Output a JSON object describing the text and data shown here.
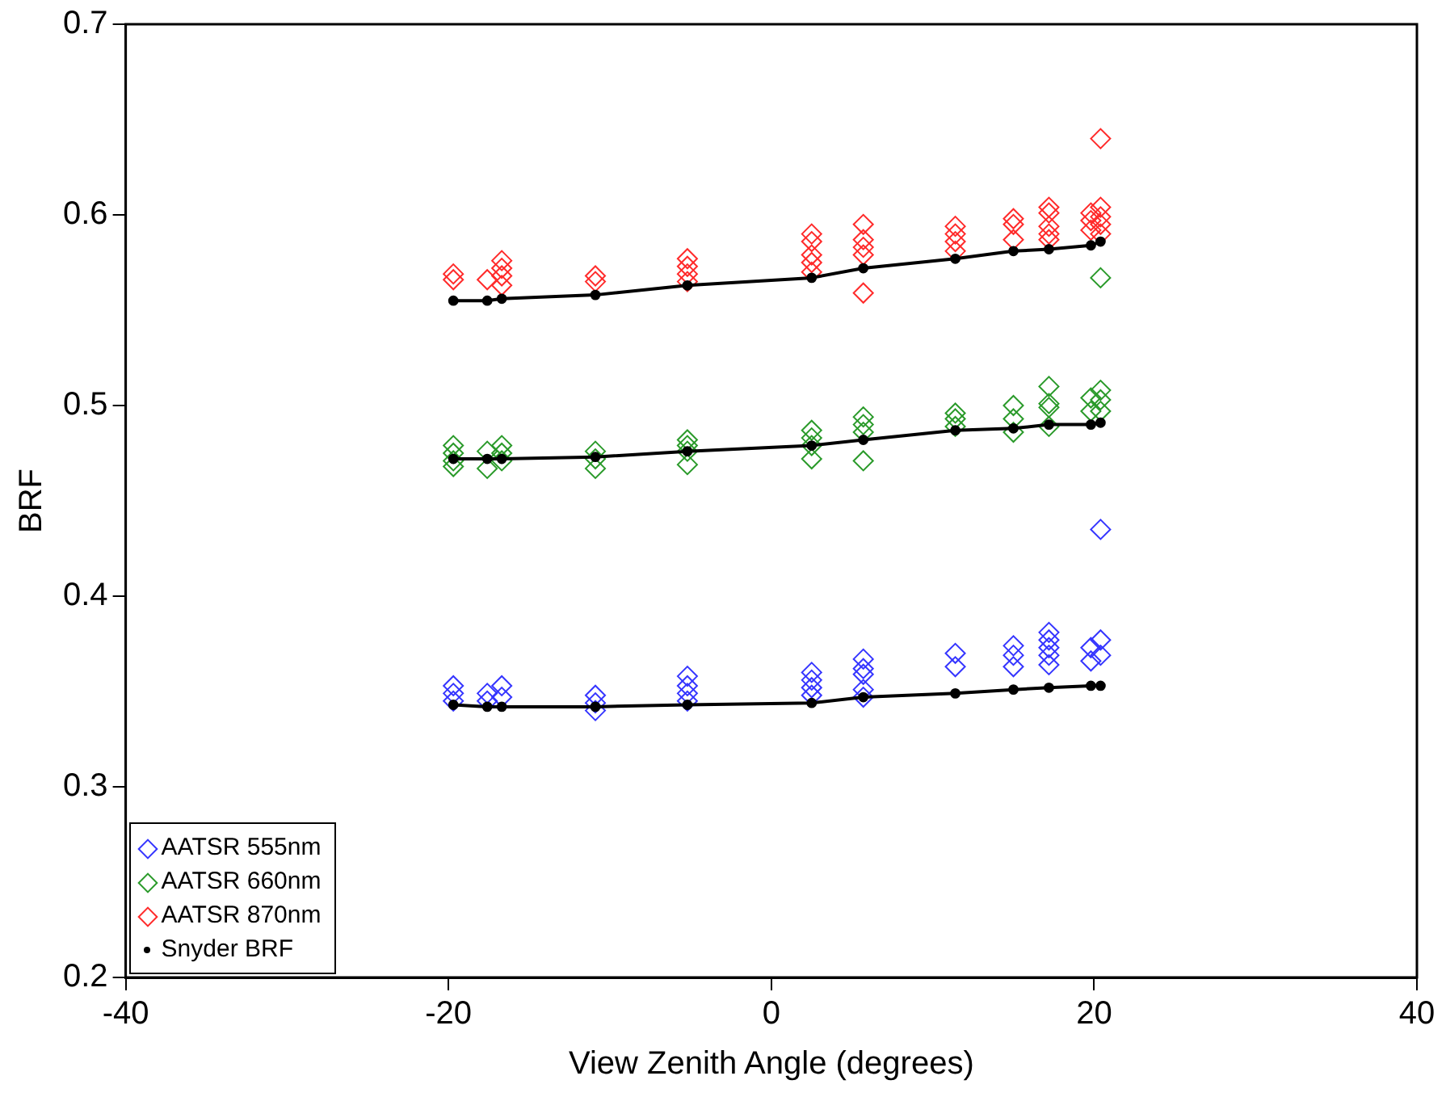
{
  "chart_data": {
    "type": "scatter",
    "xlabel": "View Zenith Angle (degrees)",
    "ylabel": "BRF",
    "xlim": [
      -40,
      40
    ],
    "xticks": [
      -40,
      -20,
      0,
      20,
      40
    ],
    "ylim": [
      0.2,
      0.7
    ],
    "yticks": [
      0.2,
      0.3,
      0.4,
      0.5,
      0.6,
      0.7
    ],
    "grid": false,
    "legend": "bottom left",
    "series": [
      {
        "name": "AATSR 555nm",
        "color": "#3535ff",
        "marker": "diamond",
        "x": [
          -19.7,
          -19.7,
          -19.7,
          -17.6,
          -17.6,
          -16.7,
          -16.7,
          -10.9,
          -10.9,
          -10.9,
          -5.2,
          -5.2,
          -5.2,
          -5.2,
          2.5,
          2.5,
          2.5,
          2.5,
          5.7,
          5.7,
          5.7,
          5.7,
          5.7,
          11.4,
          11.4,
          15.0,
          15.0,
          15.0,
          17.2,
          17.2,
          17.2,
          17.2,
          17.2,
          19.8,
          19.8,
          20.4,
          20.4,
          20.4
        ],
        "values": [
          0.353,
          0.349,
          0.345,
          0.349,
          0.345,
          0.353,
          0.347,
          0.348,
          0.344,
          0.34,
          0.358,
          0.353,
          0.349,
          0.345,
          0.36,
          0.356,
          0.352,
          0.348,
          0.367,
          0.362,
          0.359,
          0.351,
          0.347,
          0.37,
          0.363,
          0.374,
          0.369,
          0.363,
          0.381,
          0.377,
          0.373,
          0.369,
          0.364,
          0.373,
          0.366,
          0.377,
          0.369,
          0.435
        ]
      },
      {
        "name": "AATSR 660nm",
        "color": "#2a9a2a",
        "marker": "diamond",
        "x": [
          -19.7,
          -19.7,
          -19.7,
          -19.7,
          -17.6,
          -17.6,
          -16.7,
          -16.7,
          -16.7,
          -10.9,
          -10.9,
          -10.9,
          -5.2,
          -5.2,
          -5.2,
          -5.2,
          2.5,
          2.5,
          2.5,
          2.5,
          5.7,
          5.7,
          5.7,
          5.7,
          11.4,
          11.4,
          11.4,
          15.0,
          15.0,
          15.0,
          17.2,
          17.2,
          17.2,
          17.2,
          19.8,
          19.8,
          20.4,
          20.4,
          20.4,
          20.4
        ],
        "values": [
          0.479,
          0.475,
          0.471,
          0.468,
          0.476,
          0.467,
          0.479,
          0.475,
          0.471,
          0.476,
          0.472,
          0.467,
          0.482,
          0.479,
          0.476,
          0.469,
          0.487,
          0.483,
          0.479,
          0.472,
          0.494,
          0.49,
          0.486,
          0.471,
          0.496,
          0.493,
          0.489,
          0.5,
          0.493,
          0.486,
          0.51,
          0.501,
          0.499,
          0.489,
          0.504,
          0.497,
          0.508,
          0.503,
          0.497,
          0.567
        ]
      },
      {
        "name": "AATSR 870nm",
        "color": "#ff2a2a",
        "marker": "diamond",
        "x": [
          -19.7,
          -19.7,
          -17.6,
          -16.7,
          -16.7,
          -16.7,
          -16.7,
          -10.9,
          -10.9,
          -5.2,
          -5.2,
          -5.2,
          -5.2,
          2.5,
          2.5,
          2.5,
          2.5,
          2.5,
          5.7,
          5.7,
          5.7,
          5.7,
          5.7,
          11.4,
          11.4,
          11.4,
          11.4,
          15.0,
          15.0,
          15.0,
          17.2,
          17.2,
          17.2,
          17.2,
          17.2,
          19.8,
          19.8,
          19.8,
          20.4,
          20.4,
          20.4,
          20.4,
          20.4
        ],
        "values": [
          0.569,
          0.566,
          0.566,
          0.576,
          0.572,
          0.568,
          0.563,
          0.568,
          0.565,
          0.577,
          0.573,
          0.569,
          0.565,
          0.59,
          0.586,
          0.579,
          0.575,
          0.57,
          0.595,
          0.587,
          0.583,
          0.579,
          0.559,
          0.594,
          0.59,
          0.586,
          0.581,
          0.598,
          0.595,
          0.587,
          0.604,
          0.601,
          0.594,
          0.59,
          0.587,
          0.601,
          0.597,
          0.592,
          0.604,
          0.599,
          0.595,
          0.59,
          0.64
        ]
      },
      {
        "name": "Snyder BRF",
        "type": "line",
        "color": "#000000",
        "marker": "circle",
        "x": [
          -19.7,
          -17.6,
          -16.7,
          -10.9,
          -5.2,
          2.5,
          5.7,
          11.4,
          15.0,
          17.2,
          19.8,
          20.4
        ],
        "values": [
          0.343,
          0.342,
          0.342,
          0.342,
          0.343,
          0.344,
          0.347,
          0.349,
          0.351,
          0.352,
          0.353,
          0.353
        ]
      },
      {
        "type": "line",
        "color": "#000000",
        "marker": "circle",
        "x": [
          -19.7,
          -17.6,
          -16.7,
          -10.9,
          -5.2,
          2.5,
          5.7,
          11.4,
          15.0,
          17.2,
          19.8,
          20.4
        ],
        "values": [
          0.472,
          0.472,
          0.472,
          0.473,
          0.476,
          0.479,
          0.482,
          0.487,
          0.488,
          0.49,
          0.49,
          0.491
        ]
      },
      {
        "type": "line",
        "color": "#000000",
        "marker": "circle",
        "x": [
          -19.7,
          -17.6,
          -16.7,
          -10.9,
          -5.2,
          2.5,
          5.7,
          11.4,
          15.0,
          17.2,
          19.8,
          20.4
        ],
        "values": [
          0.555,
          0.555,
          0.556,
          0.558,
          0.563,
          0.567,
          0.572,
          0.577,
          0.581,
          0.582,
          0.584,
          0.586
        ]
      }
    ]
  }
}
